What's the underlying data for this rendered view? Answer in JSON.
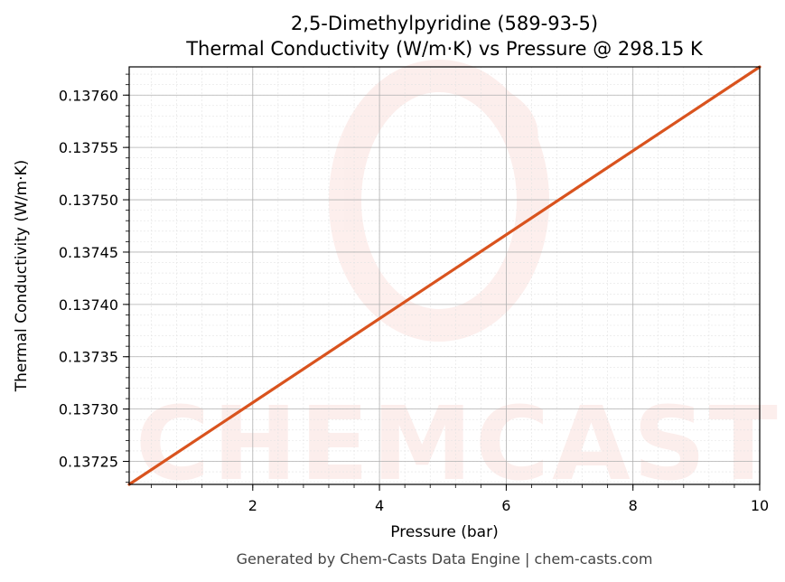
{
  "chart_data": {
    "type": "line",
    "title": "2,5-Dimethylpyridine (589-93-5)",
    "subtitle": "Thermal Conductivity (W/m·K) vs Pressure @ 298.15 K",
    "xlabel": "Pressure (bar)",
    "ylabel": "Thermal Conductivity (W/m·K)",
    "xlim": [
      0.05,
      10
    ],
    "ylim": [
      0.137228,
      0.137627
    ],
    "xticks": [
      2,
      4,
      6,
      8,
      10
    ],
    "xtick_labels": [
      "2",
      "4",
      "6",
      "8",
      "10"
    ],
    "yticks": [
      0.13725,
      0.1373,
      0.13735,
      0.1374,
      0.13745,
      0.1375,
      0.13755,
      0.1376
    ],
    "ytick_labels": [
      "0.13725",
      "0.13730",
      "0.13735",
      "0.13740",
      "0.13745",
      "0.13750",
      "0.13755",
      "0.13760"
    ],
    "grid": true,
    "series": [
      {
        "color": "#d9531e",
        "x": [
          0.05,
          10
        ],
        "y": [
          0.137228,
          0.137627
        ]
      }
    ]
  },
  "watermark": {
    "text": "CHEMCASTS",
    "color": "#e8614d"
  },
  "footer": "Generated by Chem-Casts Data Engine | chem-casts.com"
}
